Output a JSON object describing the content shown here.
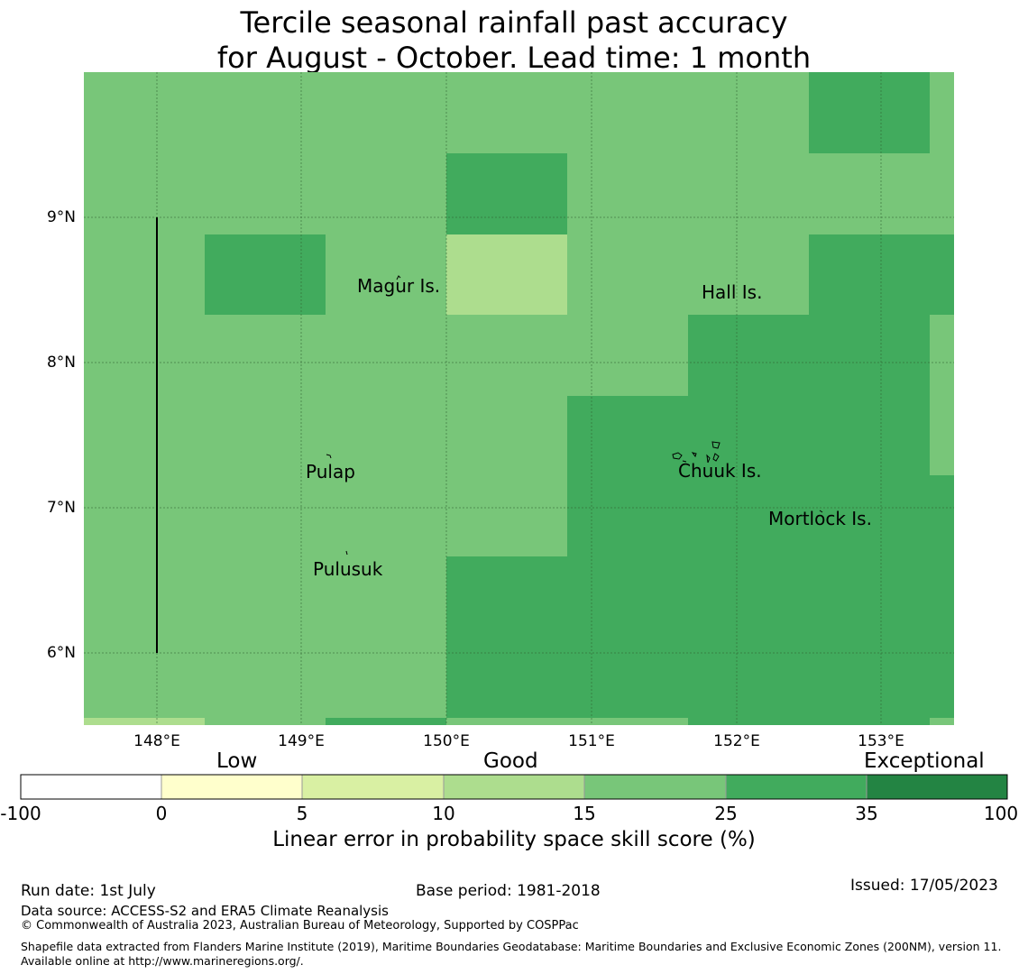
{
  "title": {
    "line1": "Tercile seasonal rainfall past accuracy",
    "line2": "for August - October. Lead time: 1 month"
  },
  "map": {
    "lon_ticks": [
      "148°E",
      "149°E",
      "150°E",
      "151°E",
      "152°E",
      "153°E"
    ],
    "lat_ticks": [
      "9°N",
      "8°N",
      "7°N",
      "6°N"
    ],
    "places": [
      {
        "key": "magur",
        "label": "Magur Is."
      },
      {
        "key": "hall",
        "label": "Hall Is."
      },
      {
        "key": "pulap",
        "label": "Pulap"
      },
      {
        "key": "chuuk",
        "label": "Chuuk Is."
      },
      {
        "key": "mortlock",
        "label": "Mortlock Is."
      },
      {
        "key": "pulusuk",
        "label": "Pulusuk"
      }
    ]
  },
  "colorbar": {
    "categories": [
      "Low",
      "Good",
      "Exceptional"
    ],
    "tick_labels": [
      "-100",
      "0",
      "5",
      "10",
      "15",
      "25",
      "35",
      "100"
    ],
    "colors": [
      "#ffffff",
      "#ffffcc",
      "#d9f0a3",
      "#addd8e",
      "#78c679",
      "#41ab5d",
      "#238443"
    ],
    "label": "Linear error in probability space skill score (%)"
  },
  "footer": {
    "run_date": "Run date: 1st July",
    "base_period": "Base period: 1981-2018",
    "issued": "Issued: 17/05/2023",
    "data_source": "Data source: ACCESS-S2 and ERA5 Climate Reanalysis",
    "copyright": "© Commonwealth of Australia 2023, Australian Bureau of Meteorology, Supported by COSPPac",
    "shapefile": "Shapefile data extracted from Flanders Marine Institute (2019), Maritime Boundaries Geodatabase: Maritime Boundaries and Exclusive Economic Zones (200NM), version 11. Available online at http://www.marineregions.org/."
  }
}
